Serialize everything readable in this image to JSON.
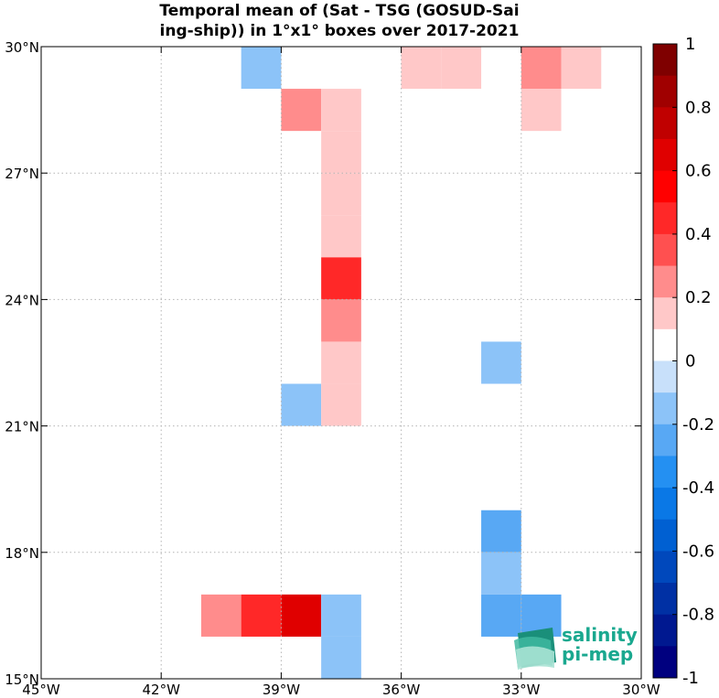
{
  "chart_data": {
    "type": "heatmap",
    "title_lines": [
      "Temporal mean of (Sat - TSG (GOSUD-Sai",
      "ing-ship)) in 1°x1° boxes over 2017-2021"
    ],
    "xlim": [
      -45,
      -30
    ],
    "ylim": [
      15,
      30
    ],
    "xticks": [
      -45,
      -42,
      -39,
      -36,
      -33,
      -30
    ],
    "yticks": [
      15,
      18,
      21,
      24,
      27,
      30
    ],
    "xtick_labels": [
      "45°W",
      "42°W",
      "39°W",
      "36°W",
      "33°W",
      "30°W"
    ],
    "ytick_labels": [
      "15°N",
      "18°N",
      "21°N",
      "24°N",
      "27°N",
      "30°N"
    ],
    "grid": true,
    "colorbar": {
      "range": [
        -1,
        1
      ],
      "ticks": [
        "1",
        "0.8",
        "0.6",
        "0.4",
        "0.2",
        "0",
        "-0.2",
        "-0.4",
        "-0.6",
        "-0.8",
        "-1"
      ],
      "colors_top_to_bottom": [
        "#7f0000",
        "#a00000",
        "#c00000",
        "#e00000",
        "#ff0000",
        "#ff2828",
        "#ff5050",
        "#ff8c8c",
        "#ffc8c8",
        "#ffffff",
        "#c8e0fa",
        "#8cc3f8",
        "#58a8f4",
        "#2490f2",
        "#0a78e6",
        "#0060d2",
        "#0048bc",
        "#0030a4",
        "#001890",
        "#00007f"
      ]
    },
    "cells": [
      {
        "lon": -40,
        "lat": 29,
        "value": -0.15
      },
      {
        "lon": -36,
        "lat": 29,
        "value": 0.15
      },
      {
        "lon": -35,
        "lat": 29,
        "value": 0.15
      },
      {
        "lon": -33,
        "lat": 29,
        "value": 0.3
      },
      {
        "lon": -32,
        "lat": 29,
        "value": 0.15
      },
      {
        "lon": -39,
        "lat": 28,
        "value": 0.3
      },
      {
        "lon": -38,
        "lat": 28,
        "value": 0.15
      },
      {
        "lon": -33,
        "lat": 28,
        "value": 0.15
      },
      {
        "lon": -38,
        "lat": 27,
        "value": 0.15
      },
      {
        "lon": -38,
        "lat": 26,
        "value": 0.15
      },
      {
        "lon": -38,
        "lat": 25,
        "value": 0.15
      },
      {
        "lon": -38,
        "lat": 24,
        "value": 0.5
      },
      {
        "lon": -38,
        "lat": 23,
        "value": 0.3
      },
      {
        "lon": -38,
        "lat": 22,
        "value": 0.15
      },
      {
        "lon": -34,
        "lat": 22,
        "value": -0.15
      },
      {
        "lon": -39,
        "lat": 21,
        "value": -0.15
      },
      {
        "lon": -38,
        "lat": 21,
        "value": 0.15
      },
      {
        "lon": -34,
        "lat": 18,
        "value": -0.25
      },
      {
        "lon": -34,
        "lat": 17,
        "value": -0.15
      },
      {
        "lon": -41,
        "lat": 16,
        "value": 0.3
      },
      {
        "lon": -40,
        "lat": 16,
        "value": 0.5
      },
      {
        "lon": -39,
        "lat": 16,
        "value": 0.7
      },
      {
        "lon": -38,
        "lat": 16,
        "value": -0.15
      },
      {
        "lon": -38,
        "lat": 15,
        "value": -0.15
      },
      {
        "lon": -34,
        "lat": 16,
        "value": -0.25
      },
      {
        "lon": -33,
        "lat": 16,
        "value": -0.25
      }
    ]
  },
  "logo": {
    "line1": "salinity",
    "line2": "pi-mep"
  }
}
